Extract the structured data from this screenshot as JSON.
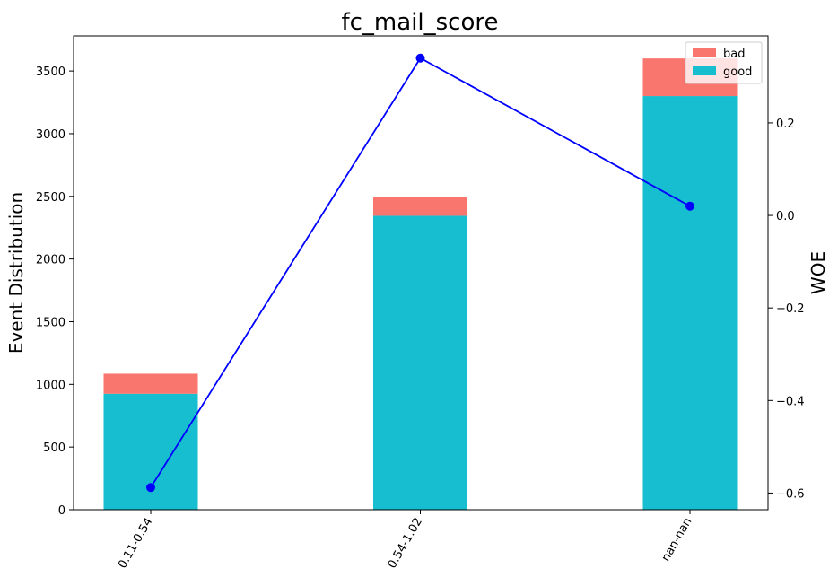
{
  "chart_data": {
    "type": "bar",
    "title": "fc_mail_score",
    "categories": [
      "0.11-0.54",
      "0.54-1.02",
      "nan-nan"
    ],
    "series": [
      {
        "name": "good",
        "values": [
          925,
          2345,
          3300
        ],
        "color": "#17becf"
      },
      {
        "name": "bad",
        "values": [
          160,
          150,
          300
        ],
        "color": "#f8766d"
      }
    ],
    "line_series": {
      "name": "WOE",
      "values": [
        -0.588,
        0.34,
        0.02
      ],
      "color": "#0000ff"
    },
    "ylabel": "Event Distribution",
    "y2label": "WOE",
    "ylim": [
      0,
      3780
    ],
    "y2lim": [
      -0.636,
      0.388
    ],
    "yticks": [
      0,
      500,
      1000,
      1500,
      2000,
      2500,
      3000,
      3500
    ],
    "y2ticks": [
      -0.6,
      -0.4,
      -0.2,
      0.0,
      0.2
    ],
    "y2tick_labels": [
      "−0.6",
      "−0.4",
      "−0.2",
      "0.0",
      "0.2"
    ],
    "legend": {
      "placement": "top-right",
      "entries": [
        "bad",
        "good"
      ]
    }
  }
}
